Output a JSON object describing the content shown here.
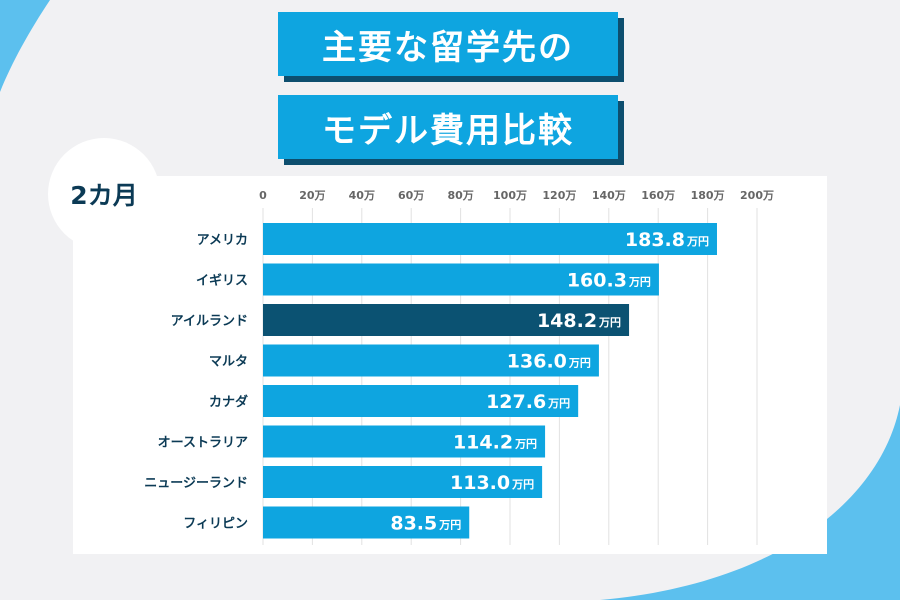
{
  "title_line1": "主要な留学先の",
  "title_line2": "モデル費用比較",
  "badge": "2カ月",
  "colors": {
    "background": "#f1f1f3",
    "bar": "#0ea5e0",
    "highlight": "#0b5272",
    "title_bg": "#0ea5e0",
    "title_shadow": "#0d4e6e",
    "tick_text": "#666666",
    "category_text": "#0b3a55",
    "decor": "#5cc0ee"
  },
  "chart_data": {
    "type": "bar",
    "orientation": "horizontal",
    "categories": [
      "アメリカ",
      "イギリス",
      "アイルランド",
      "マルタ",
      "カナダ",
      "オーストラリア",
      "ニュージーランド",
      "フィリピン"
    ],
    "values": [
      183.8,
      160.3,
      148.2,
      136.0,
      127.6,
      114.2,
      113.0,
      83.5
    ],
    "value_labels": [
      "183.8",
      "160.3",
      "148.2",
      "136.0",
      "127.6",
      "114.2",
      "113.0",
      "83.5"
    ],
    "value_unit": "万円",
    "highlight": "アイルランド",
    "xlim": [
      0,
      200
    ],
    "ticks": [
      0,
      20,
      40,
      60,
      80,
      100,
      120,
      140,
      160,
      180,
      200
    ],
    "tick_labels": [
      "0",
      "20万",
      "40万",
      "60万",
      "80万",
      "100万",
      "120万",
      "140万",
      "160万",
      "180万",
      "200万"
    ],
    "grid": true
  }
}
